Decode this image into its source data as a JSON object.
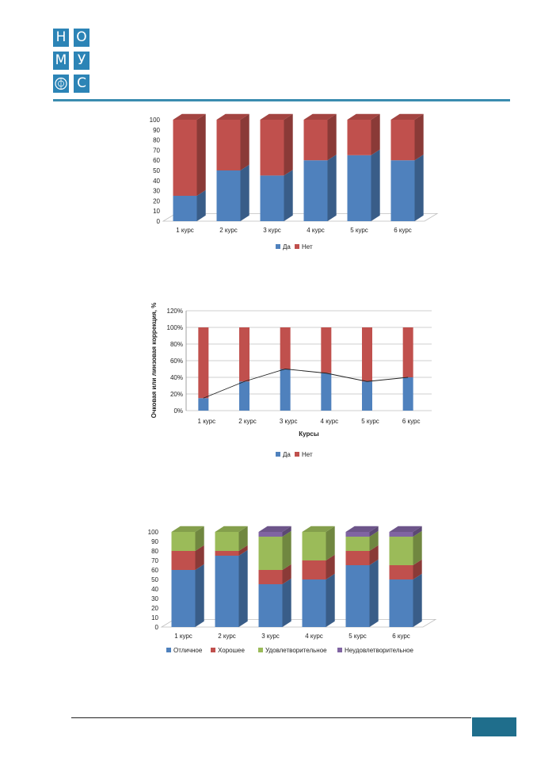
{
  "header": {
    "logo_letters": [
      "Н",
      "О",
      "М",
      "У",
      "С"
    ],
    "logo_emblem_icon": "university-emblem-icon",
    "accent_color": "#2c84b6"
  },
  "chart_data": [
    {
      "type": "bar",
      "stacked": true,
      "style": "3d",
      "categories": [
        "1 курс",
        "2 курс",
        "3 курс",
        "4 курс",
        "5 курс",
        "6 курс"
      ],
      "series": [
        {
          "name": "Да",
          "color": "#4f81bd",
          "values": [
            25,
            50,
            45,
            60,
            65,
            60
          ]
        },
        {
          "name": "Нет",
          "color": "#c0504d",
          "values": [
            75,
            50,
            55,
            40,
            35,
            40
          ]
        }
      ],
      "ylim": [
        0,
        100
      ],
      "yticks": [
        0,
        10,
        20,
        30,
        40,
        50,
        60,
        70,
        80,
        90,
        100
      ],
      "legend": "bottom"
    },
    {
      "type": "bar",
      "stacked": true,
      "categories": [
        "1 курс",
        "2 курс",
        "3 курс",
        "4 курс",
        "5 курс",
        "6 курс"
      ],
      "series": [
        {
          "name": "Да",
          "color": "#4f81bd",
          "values": [
            15,
            35,
            50,
            45,
            35,
            40
          ]
        },
        {
          "name": "Нет",
          "color": "#c0504d",
          "values": [
            85,
            65,
            50,
            55,
            65,
            60
          ]
        }
      ],
      "overlay_line": [
        15,
        35,
        50,
        45,
        35,
        40
      ],
      "ylim": [
        0,
        120
      ],
      "yticks": [
        "0%",
        "20%",
        "40%",
        "60%",
        "80%",
        "100%",
        "120%"
      ],
      "ylabel": "Очковая или линзовая коррекция, %",
      "xlabel": "Курсы",
      "grid": true,
      "legend": "bottom"
    },
    {
      "type": "bar",
      "stacked": true,
      "style": "3d",
      "categories": [
        "1 курс",
        "2 курс",
        "3 курс",
        "4 курс",
        "5 курс",
        "6 курс"
      ],
      "series": [
        {
          "name": "Отличное",
          "color": "#4f81bd",
          "values": [
            60,
            75,
            45,
            50,
            65,
            50
          ]
        },
        {
          "name": "Хорошее",
          "color": "#c0504d",
          "values": [
            20,
            5,
            15,
            20,
            15,
            15
          ]
        },
        {
          "name": "Удовлетворительное",
          "color": "#9bbb59",
          "values": [
            20,
            20,
            35,
            30,
            15,
            30
          ]
        },
        {
          "name": "Неудовлетворительное",
          "color": "#8064a2",
          "values": [
            0,
            0,
            5,
            0,
            5,
            5
          ]
        }
      ],
      "ylim": [
        0,
        100
      ],
      "yticks": [
        0,
        10,
        20,
        30,
        40,
        50,
        60,
        70,
        80,
        90,
        100
      ],
      "legend": "bottom"
    }
  ]
}
